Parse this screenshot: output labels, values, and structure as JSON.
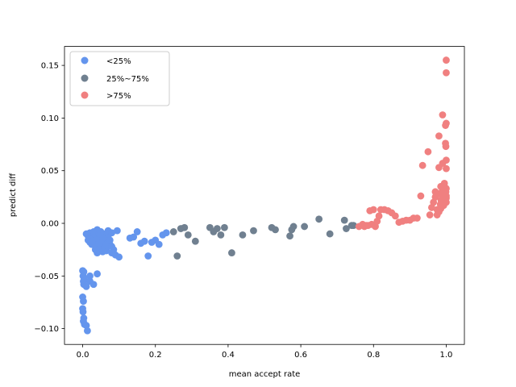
{
  "chart_data": {
    "type": "scatter",
    "title": "",
    "xlabel": "mean accept rate",
    "ylabel": "predict diff",
    "xlim": [
      -0.05,
      1.05
    ],
    "ylim": [
      -0.115,
      0.168
    ],
    "xticks": [
      0.0,
      0.2,
      0.4,
      0.6,
      0.8,
      1.0
    ],
    "xtick_labels": [
      "0.0",
      "0.2",
      "0.4",
      "0.6",
      "0.8",
      "1.0"
    ],
    "yticks": [
      -0.1,
      -0.05,
      0.0,
      0.05,
      0.1,
      0.15
    ],
    "ytick_labels": [
      "−0.10",
      "−0.05",
      "0.00",
      "0.05",
      "0.10",
      "0.15"
    ],
    "grid": false,
    "legend": "top-left",
    "series": [
      {
        "name": "<25%",
        "color": "#6495ed",
        "points": [
          [
            0.0,
            -0.045
          ],
          [
            0.003,
            -0.046
          ],
          [
            0.001,
            -0.05
          ],
          [
            0.004,
            -0.052
          ],
          [
            0.002,
            -0.055
          ],
          [
            0.003,
            -0.058
          ],
          [
            0.0,
            -0.07
          ],
          [
            0.002,
            -0.074
          ],
          [
            0.0,
            -0.081
          ],
          [
            0.001,
            -0.084
          ],
          [
            0.003,
            -0.09
          ],
          [
            0.002,
            -0.093
          ],
          [
            0.005,
            -0.096
          ],
          [
            0.01,
            -0.097
          ],
          [
            0.013,
            -0.102
          ],
          [
            0.01,
            -0.06
          ],
          [
            0.02,
            -0.05
          ],
          [
            0.03,
            -0.058
          ],
          [
            0.04,
            -0.048
          ],
          [
            0.02,
            -0.055
          ],
          [
            0.01,
            -0.01
          ],
          [
            0.015,
            -0.012
          ],
          [
            0.02,
            -0.009
          ],
          [
            0.025,
            -0.013
          ],
          [
            0.03,
            -0.008
          ],
          [
            0.035,
            -0.012
          ],
          [
            0.04,
            -0.006
          ],
          [
            0.045,
            -0.01
          ],
          [
            0.02,
            -0.018
          ],
          [
            0.025,
            -0.02
          ],
          [
            0.03,
            -0.016
          ],
          [
            0.035,
            -0.022
          ],
          [
            0.04,
            -0.018
          ],
          [
            0.05,
            -0.015
          ],
          [
            0.055,
            -0.02
          ],
          [
            0.06,
            -0.012
          ],
          [
            0.065,
            -0.018
          ],
          [
            0.07,
            -0.013
          ],
          [
            0.05,
            -0.025
          ],
          [
            0.045,
            -0.023
          ],
          [
            0.04,
            -0.028
          ],
          [
            0.055,
            -0.027
          ],
          [
            0.06,
            -0.023
          ],
          [
            0.065,
            -0.026
          ],
          [
            0.07,
            -0.022
          ],
          [
            0.075,
            -0.02
          ],
          [
            0.08,
            -0.028
          ],
          [
            0.085,
            -0.025
          ],
          [
            0.09,
            -0.03
          ],
          [
            0.1,
            -0.032
          ],
          [
            0.05,
            -0.008
          ],
          [
            0.06,
            -0.01
          ],
          [
            0.07,
            -0.007
          ],
          [
            0.08,
            -0.009
          ],
          [
            0.095,
            -0.007
          ],
          [
            0.03,
            -0.014
          ],
          [
            0.05,
            -0.012
          ],
          [
            0.06,
            -0.016
          ],
          [
            0.07,
            -0.018
          ],
          [
            0.04,
            -0.016
          ],
          [
            0.03,
            -0.02
          ],
          [
            0.02,
            -0.015
          ],
          [
            0.045,
            -0.019
          ],
          [
            0.055,
            -0.014
          ],
          [
            0.065,
            -0.021
          ],
          [
            0.075,
            -0.016
          ],
          [
            0.08,
            -0.022
          ],
          [
            0.035,
            -0.025
          ],
          [
            0.025,
            -0.017
          ],
          [
            0.015,
            -0.016
          ],
          [
            0.14,
            -0.013
          ],
          [
            0.15,
            -0.008
          ],
          [
            0.16,
            -0.019
          ],
          [
            0.17,
            -0.017
          ],
          [
            0.18,
            -0.031
          ],
          [
            0.19,
            -0.018
          ],
          [
            0.2,
            -0.016
          ],
          [
            0.21,
            -0.02
          ],
          [
            0.22,
            -0.011
          ],
          [
            0.23,
            -0.009
          ],
          [
            0.13,
            -0.014
          ]
        ]
      },
      {
        "name": "25%~75%",
        "color": "#708090",
        "points": [
          [
            0.25,
            -0.008
          ],
          [
            0.26,
            -0.031
          ],
          [
            0.27,
            -0.005
          ],
          [
            0.28,
            -0.004
          ],
          [
            0.29,
            -0.011
          ],
          [
            0.31,
            -0.017
          ],
          [
            0.35,
            -0.004
          ],
          [
            0.36,
            -0.008
          ],
          [
            0.37,
            -0.005
          ],
          [
            0.38,
            -0.011
          ],
          [
            0.39,
            -0.004
          ],
          [
            0.41,
            -0.028
          ],
          [
            0.44,
            -0.011
          ],
          [
            0.47,
            -0.007
          ],
          [
            0.52,
            -0.004
          ],
          [
            0.53,
            -0.006
          ],
          [
            0.57,
            -0.012
          ],
          [
            0.575,
            -0.006
          ],
          [
            0.58,
            -0.003
          ],
          [
            0.61,
            -0.003
          ],
          [
            0.65,
            0.004
          ],
          [
            0.68,
            -0.01
          ],
          [
            0.72,
            0.003
          ],
          [
            0.725,
            -0.005
          ],
          [
            0.74,
            -0.002
          ],
          [
            0.745,
            -0.002
          ]
        ]
      },
      {
        "name": ">75%",
        "color": "#f08080",
        "points": [
          [
            0.76,
            -0.003
          ],
          [
            0.77,
            -0.001
          ],
          [
            0.775,
            -0.003
          ],
          [
            0.78,
            -0.002
          ],
          [
            0.785,
            -0.002
          ],
          [
            0.79,
            0.012
          ],
          [
            0.795,
            -0.001
          ],
          [
            0.8,
            0.013
          ],
          [
            0.805,
            -0.003
          ],
          [
            0.81,
            0.002
          ],
          [
            0.815,
            0.007
          ],
          [
            0.82,
            0.013
          ],
          [
            0.83,
            0.013
          ],
          [
            0.84,
            0.012
          ],
          [
            0.85,
            0.01
          ],
          [
            0.86,
            0.007
          ],
          [
            0.87,
            0.001
          ],
          [
            0.88,
            0.002
          ],
          [
            0.89,
            0.003
          ],
          [
            0.9,
            0.003
          ],
          [
            0.91,
            0.005
          ],
          [
            0.92,
            0.005
          ],
          [
            0.93,
            0.026
          ],
          [
            0.935,
            0.055
          ],
          [
            0.95,
            0.068
          ],
          [
            0.955,
            0.008
          ],
          [
            0.96,
            0.015
          ],
          [
            0.965,
            0.02
          ],
          [
            0.97,
            0.025
          ],
          [
            0.97,
            0.03
          ],
          [
            0.975,
            0.013
          ],
          [
            0.98,
            0.083
          ],
          [
            0.98,
            0.053
          ],
          [
            0.982,
            0.028
          ],
          [
            0.984,
            0.018
          ],
          [
            0.985,
            0.035
          ],
          [
            0.986,
            0.022
          ],
          [
            0.988,
            0.03
          ],
          [
            0.99,
            0.103
          ],
          [
            0.99,
            0.057
          ],
          [
            0.991,
            0.025
          ],
          [
            0.992,
            0.032
          ],
          [
            0.993,
            0.017
          ],
          [
            0.994,
            0.028
          ],
          [
            0.995,
            0.038
          ],
          [
            0.996,
            0.022
          ],
          [
            0.997,
            0.034
          ],
          [
            0.998,
            0.093
          ],
          [
            0.998,
            0.076
          ],
          [
            0.999,
            0.073
          ],
          [
            0.999,
            0.03
          ],
          [
            1.0,
            0.155
          ],
          [
            1.0,
            0.143
          ],
          [
            1.0,
            0.095
          ],
          [
            1.0,
            0.06
          ],
          [
            1.0,
            0.052
          ],
          [
            1.0,
            0.033
          ],
          [
            1.0,
            0.026
          ],
          [
            1.0,
            0.024
          ],
          [
            1.0,
            0.02
          ],
          [
            0.975,
            0.008
          ],
          [
            0.98,
            0.011
          ],
          [
            0.985,
            0.014
          ]
        ]
      }
    ]
  }
}
